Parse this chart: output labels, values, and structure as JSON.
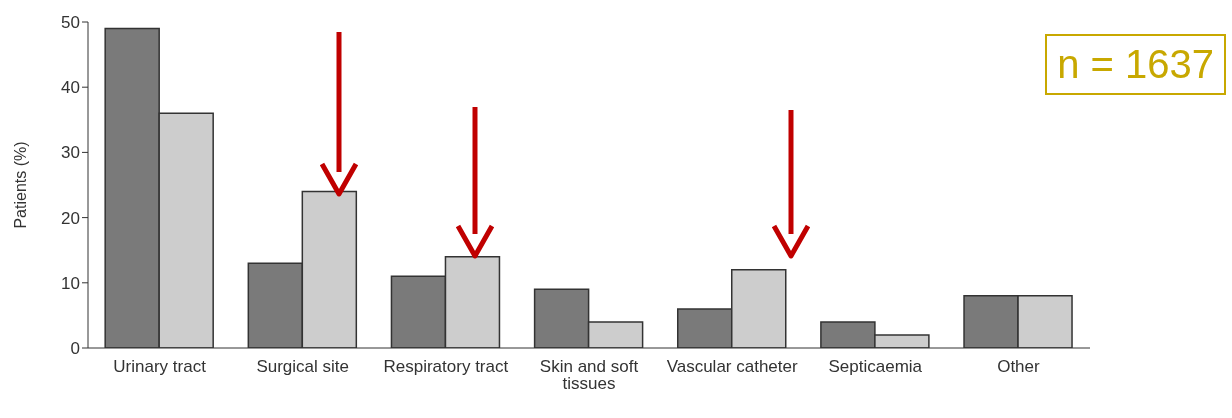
{
  "chart_data": {
    "type": "bar",
    "ylabel": "Patients (%)",
    "categories": [
      "Urinary tract",
      "Surgical site",
      "Respiratory tract",
      "Skin and soft tissues",
      "Vascular catheter",
      "Septicaemia",
      "Other"
    ],
    "series": [
      {
        "color": "#7a7a7a",
        "values": [
          49,
          13,
          11,
          9,
          6,
          4,
          8
        ]
      },
      {
        "color": "#cdcdcd",
        "values": [
          36,
          24,
          14,
          4,
          12,
          2,
          8
        ]
      }
    ],
    "ylim": [
      0,
      50
    ],
    "yticks": [
      0,
      10,
      20,
      30,
      40,
      50
    ],
    "annotations": [
      "n = 1637"
    ]
  }
}
